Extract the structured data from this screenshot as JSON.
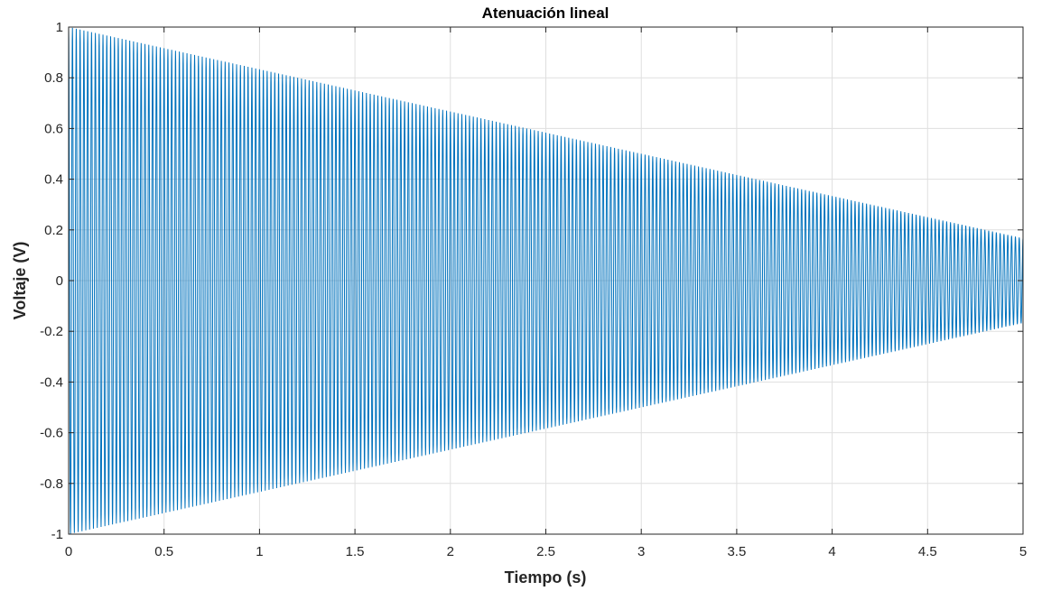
{
  "chart_data": {
    "type": "line",
    "title": "Atenuación lineal",
    "xlabel": "Tiempo (s)",
    "ylabel": "Voltaje (V)",
    "xlim": [
      0,
      5
    ],
    "ylim": [
      -1,
      1
    ],
    "xticks": [
      0,
      0.5,
      1,
      1.5,
      2,
      2.5,
      3,
      3.5,
      4,
      4.5,
      5
    ],
    "xtick_labels": [
      "0",
      "0.5",
      "1",
      "1.5",
      "2",
      "2.5",
      "3",
      "3.5",
      "4",
      "4.5",
      "5"
    ],
    "yticks": [
      -1,
      -0.8,
      -0.6,
      -0.4,
      -0.2,
      0,
      0.2,
      0.4,
      0.6,
      0.8,
      1
    ],
    "ytick_labels": [
      "-1",
      "-0.8",
      "-0.6",
      "-0.4",
      "-0.2",
      "0",
      "0.2",
      "0.4",
      "0.6",
      "0.8",
      "1"
    ],
    "grid": true,
    "series": [
      {
        "signal": "sinusoid with linear amplitude decay",
        "frequency_hz": 50,
        "amplitude_start": 1,
        "amplitude_end": 0.167,
        "t_start": 0,
        "t_end": 5,
        "color": "#0072BD"
      }
    ]
  }
}
